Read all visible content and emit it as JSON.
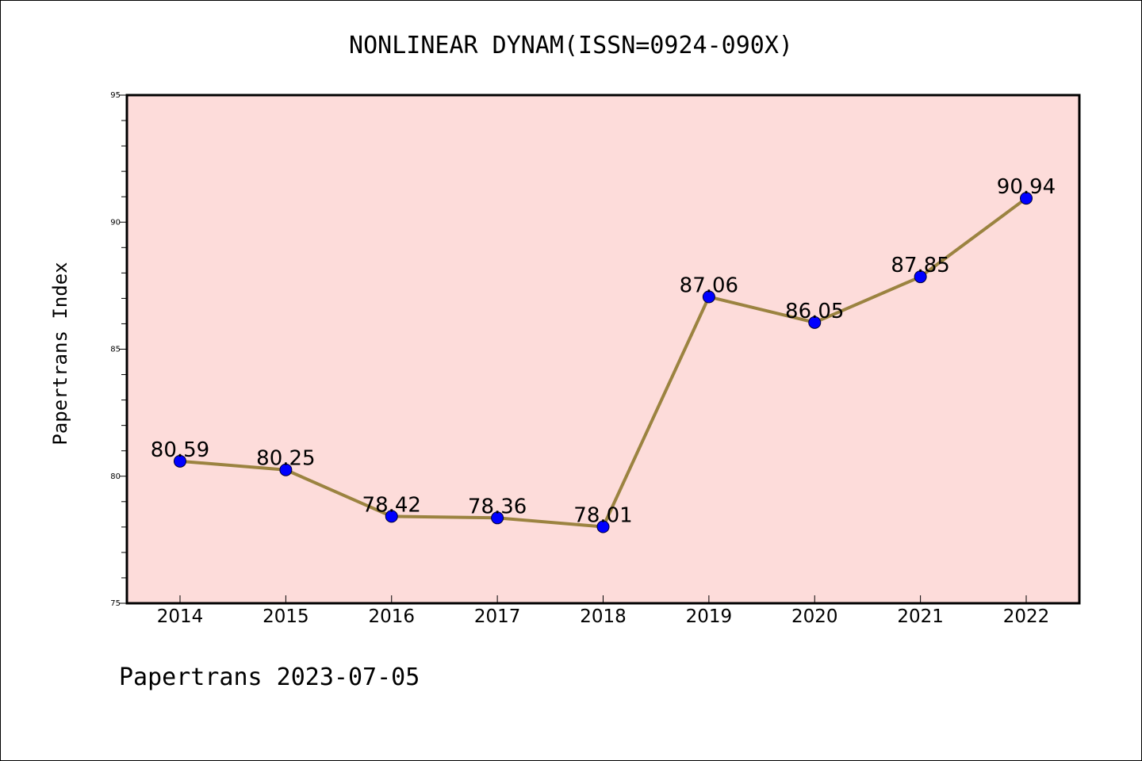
{
  "chart_data": {
    "type": "line",
    "title": "NONLINEAR DYNAM(ISSN=0924-090X)",
    "xlabel": "",
    "ylabel": "Papertrans Index",
    "footer": "Papertrans 2023-07-05",
    "categories": [
      "2014",
      "2015",
      "2016",
      "2017",
      "2018",
      "2019",
      "2020",
      "2021",
      "2022"
    ],
    "values": [
      80.59,
      80.25,
      78.42,
      78.36,
      78.01,
      87.06,
      86.05,
      87.85,
      90.94
    ],
    "value_labels": [
      "80.59",
      "80.25",
      "78.42",
      "78.36",
      "78.01",
      "87.06",
      "86.05",
      "87.85",
      "90.94"
    ],
    "ylim": [
      75,
      95
    ],
    "yticks": [
      "75",
      "80",
      "85",
      "90",
      "95"
    ],
    "grid": false,
    "colors": {
      "plot_background": "#fddcda",
      "line": "#9b8340",
      "marker": "#0000ff",
      "axis": "#000000"
    }
  }
}
